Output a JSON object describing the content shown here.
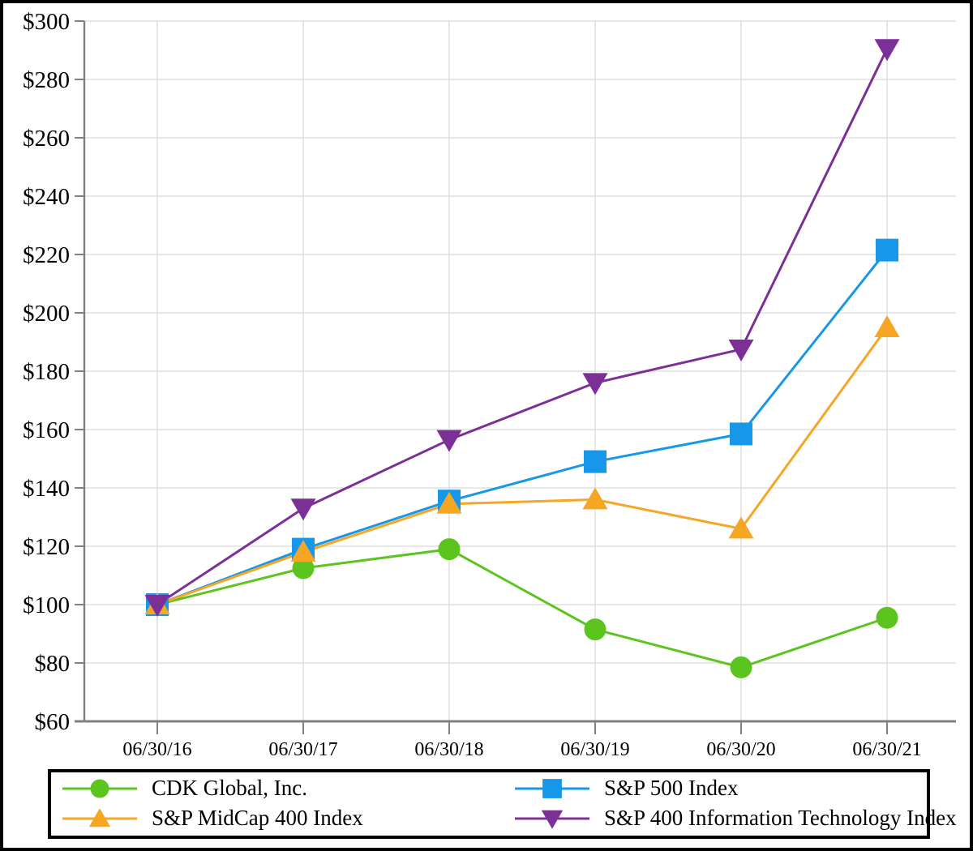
{
  "chart_data": {
    "type": "line",
    "title": "",
    "x_tick_labels": [
      "06/30/16",
      "06/30/17",
      "06/30/18",
      "06/30/19",
      "06/30/20",
      "06/30/21"
    ],
    "y_tick_labels": [
      "$60",
      "$80",
      "$100",
      "$120",
      "$140",
      "$160",
      "$180",
      "$200",
      "$220",
      "$240",
      "$260",
      "$280",
      "$300"
    ],
    "ylim": [
      60,
      300
    ],
    "y_tick_step": 20,
    "grid": true,
    "legend_position": "bottom",
    "series": [
      {
        "name": "CDK Global, Inc.",
        "color": "#5CC41E",
        "marker": "circle",
        "values": [
          100,
          112.5,
          119,
          91.5,
          78.5,
          95.5
        ]
      },
      {
        "name": "S&P 500 Index",
        "color": "#1697EA",
        "marker": "square",
        "values": [
          100,
          119,
          135.5,
          149,
          158.5,
          221.5
        ]
      },
      {
        "name": "S&P MidCap 400 Index",
        "color": "#F7A623",
        "marker": "triangle-up",
        "values": [
          100,
          118,
          134.5,
          136,
          126,
          195
        ]
      },
      {
        "name": "S&P 400 Information Technology Index",
        "color": "#7C3097",
        "marker": "triangle-down",
        "values": [
          100,
          133,
          156.5,
          176,
          187.5,
          290.5
        ]
      }
    ],
    "legend": {
      "order": [
        0,
        1,
        2,
        3
      ]
    }
  },
  "colors": {
    "axis": "#808080",
    "gridline": "#E0E0E0",
    "text": "#000000",
    "background": "#FFFFFF",
    "border": "#000000"
  }
}
